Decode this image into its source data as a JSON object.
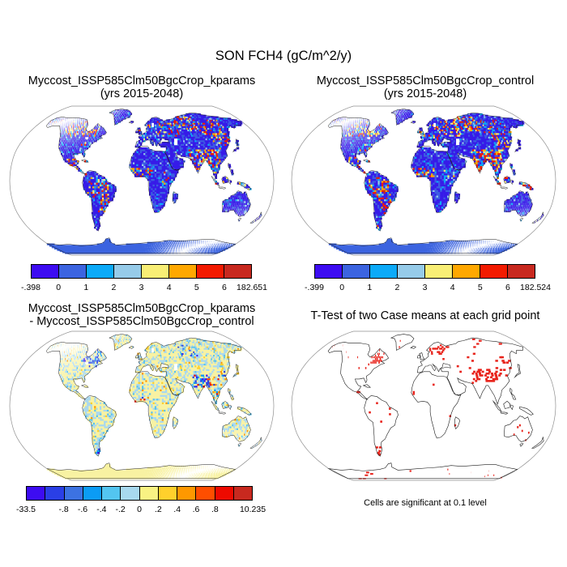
{
  "figure_title": "SON FCH4 (gC/m^2/y)",
  "panels": {
    "top_left": {
      "title_line1": "Myccost_ISSP585Clm50BgcCrop_kparams",
      "title_line2": "(yrs 2015-2048)",
      "colorbar": {
        "colors": [
          "#3d0cf2",
          "#3c64e0",
          "#0caaf8",
          "#96cbe9",
          "#f8ee75",
          "#ffa800",
          "#f31b00",
          "#c8291f"
        ],
        "tick_labels": [
          "-.398",
          "0",
          "1",
          "2",
          "3",
          "4",
          "5",
          "6",
          "182.651"
        ]
      }
    },
    "top_right": {
      "title_line1": "Myccost_ISSP585Clm50BgcCrop_control",
      "title_line2": "(yrs 2015-2048)",
      "colorbar": {
        "colors": [
          "#3d0cf2",
          "#3c64e0",
          "#0caaf8",
          "#96cbe9",
          "#f8ee75",
          "#ffa800",
          "#f31b00",
          "#c8291f"
        ],
        "tick_labels": [
          "-.399",
          "0",
          "1",
          "2",
          "3",
          "4",
          "5",
          "6",
          "182.524"
        ]
      }
    },
    "bottom_left": {
      "title_line1": "Myccost_ISSP585Clm50BgcCrop_kparams",
      "title_line2": "- Myccost_ISSP585Clm50BgcCrop_control",
      "colorbar": {
        "colors": [
          "#3d0cf2",
          "#2a3fe6",
          "#3c72e2",
          "#0b9cf5",
          "#53c5f0",
          "#a8d9ef",
          "#f8f283",
          "#ffd02c",
          "#ff9800",
          "#ff4e00",
          "#ee0a00",
          "#c8291f"
        ],
        "tick_labels": [
          "-33.5",
          "",
          "-.8",
          "-.6",
          "-.4",
          "-.2",
          "0",
          ".2",
          ".4",
          ".6",
          ".8",
          "",
          "10.235"
        ]
      }
    },
    "bottom_right": {
      "title": "T-Test of two Case means at each grid point",
      "caption": "Cells are significant at 0.1 level"
    }
  },
  "map_style": {
    "ocean": "#ffffff",
    "coastline": "#1a1a1a",
    "map_border": "#909090",
    "land_base_blue": "#361be8",
    "land_base_blue2": "#3c5ce2",
    "antarctica_blue": "#3c64e0",
    "diff_pale_yellow": "#f8f2a2",
    "diff_light_blue": "#a9d8ee",
    "diff_mid_blue": "#5cc2ee",
    "ttest_red": "#e8241c"
  },
  "chart_data": [
    {
      "type": "heatmap",
      "title": "Myccost_ISSP585Clm50BgcCrop_kparams (yrs 2015-2048)",
      "variable": "FCH4",
      "units": "gC/m^2/y",
      "season": "SON",
      "projection": "robinson",
      "bin_edges": [
        -0.398,
        0,
        1,
        2,
        3,
        4,
        5,
        6,
        182.651
      ],
      "bin_colors": [
        "#3d0cf2",
        "#3c64e0",
        "#0caaf8",
        "#96cbe9",
        "#f8ee75",
        "#ffa800",
        "#f31b00",
        "#c8291f"
      ],
      "legend_position": "bottom"
    },
    {
      "type": "heatmap",
      "title": "Myccost_ISSP585Clm50BgcCrop_control (yrs 2015-2048)",
      "variable": "FCH4",
      "units": "gC/m^2/y",
      "season": "SON",
      "projection": "robinson",
      "bin_edges": [
        -0.399,
        0,
        1,
        2,
        3,
        4,
        5,
        6,
        182.524
      ],
      "bin_colors": [
        "#3d0cf2",
        "#3c64e0",
        "#0caaf8",
        "#96cbe9",
        "#f8ee75",
        "#ffa800",
        "#f31b00",
        "#c8291f"
      ],
      "legend_position": "bottom"
    },
    {
      "type": "heatmap",
      "title": "Myccost_ISSP585Clm50BgcCrop_kparams - Myccost_ISSP585Clm50BgcCrop_control",
      "variable": "FCH4 difference",
      "units": "gC/m^2/y",
      "season": "SON",
      "projection": "robinson",
      "bin_edges": [
        -33.5,
        -1,
        -0.8,
        -0.6,
        -0.4,
        -0.2,
        0,
        0.2,
        0.4,
        0.6,
        0.8,
        1,
        10.235
      ],
      "bin_colors": [
        "#3d0cf2",
        "#2a3fe6",
        "#3c72e2",
        "#0b9cf5",
        "#53c5f0",
        "#a8d9ef",
        "#f8f283",
        "#ffd02c",
        "#ff9800",
        "#ff4e00",
        "#ee0a00",
        "#c8291f"
      ],
      "legend_position": "bottom"
    },
    {
      "type": "heatmap",
      "title": "T-Test of two Case means at each grid point",
      "note": "Cells are significant at 0.1 level",
      "significance_level": 0.1,
      "projection": "robinson",
      "significant_color": "#e8241c"
    }
  ]
}
